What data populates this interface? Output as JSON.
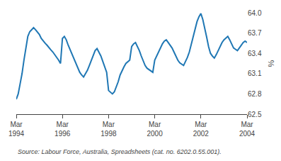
{
  "chart_data": {
    "type": "line",
    "ylabel": "%",
    "categories": [
      "Mar\n1994",
      null,
      null,
      null,
      null,
      null,
      null,
      null,
      null,
      null,
      null,
      null,
      null,
      null,
      null,
      null,
      null,
      null,
      null,
      null,
      null,
      null,
      null,
      null,
      "Mar\n1996",
      null,
      null,
      null,
      null,
      null,
      null,
      null,
      null,
      null,
      null,
      null,
      null,
      null,
      null,
      null,
      null,
      null,
      null,
      null,
      null,
      null,
      null,
      null,
      "Mar\n1998",
      null,
      null,
      null,
      null,
      null,
      null,
      null,
      null,
      null,
      null,
      null,
      null,
      null,
      null,
      null,
      null,
      null,
      null,
      null,
      null,
      null,
      null,
      null,
      "Mar\n2000",
      null,
      null,
      null,
      null,
      null,
      null,
      null,
      null,
      null,
      null,
      null,
      null,
      null,
      null,
      null,
      null,
      null,
      null,
      null,
      null,
      null,
      null,
      null,
      "Mar\n2002",
      null,
      null,
      null,
      null,
      null,
      null,
      null,
      null,
      null,
      null,
      null,
      null,
      null,
      null,
      null,
      null,
      null,
      null,
      null,
      null,
      null,
      null,
      null,
      "Mar\n2004"
    ],
    "values": [
      62.72,
      62.8,
      62.95,
      63.1,
      63.3,
      63.5,
      63.65,
      63.72,
      63.75,
      63.78,
      63.75,
      63.72,
      63.68,
      63.62,
      63.58,
      63.55,
      63.52,
      63.48,
      63.45,
      63.42,
      63.38,
      63.35,
      63.3,
      63.25,
      63.62,
      63.65,
      63.6,
      63.52,
      63.45,
      63.4,
      63.32,
      63.25,
      63.18,
      63.12,
      63.08,
      63.05,
      63.1,
      63.15,
      63.22,
      63.3,
      63.38,
      63.44,
      63.47,
      63.42,
      63.36,
      63.28,
      63.2,
      63.12,
      62.85,
      62.82,
      62.8,
      62.83,
      62.9,
      62.98,
      63.08,
      63.15,
      63.2,
      63.25,
      63.28,
      63.3,
      63.5,
      63.54,
      63.56,
      63.5,
      63.44,
      63.36,
      63.28,
      63.22,
      63.18,
      63.16,
      63.14,
      63.12,
      63.3,
      63.36,
      63.42,
      63.48,
      63.54,
      63.58,
      63.6,
      63.56,
      63.52,
      63.48,
      63.42,
      63.36,
      63.3,
      63.26,
      63.24,
      63.22,
      63.28,
      63.34,
      63.42,
      63.54,
      63.65,
      63.77,
      63.87,
      63.94,
      63.99,
      63.9,
      63.78,
      63.64,
      63.5,
      63.4,
      63.36,
      63.33,
      63.38,
      63.44,
      63.5,
      63.56,
      63.6,
      63.63,
      63.65,
      63.6,
      63.54,
      63.48,
      63.46,
      63.44,
      63.48,
      63.52,
      63.56,
      63.58,
      63.56
    ],
    "ylim": [
      62.5,
      64.0
    ],
    "yticks": [
      62.5,
      62.8,
      63.1,
      63.4,
      63.7,
      {
        "value": 64.0,
        "label": "64.0"
      }
    ],
    "annotations": [
      "Source: Labour Force, Australia, Spreadsheets (cat. no. 6202.0.55.001)."
    ],
    "grid": false
  }
}
